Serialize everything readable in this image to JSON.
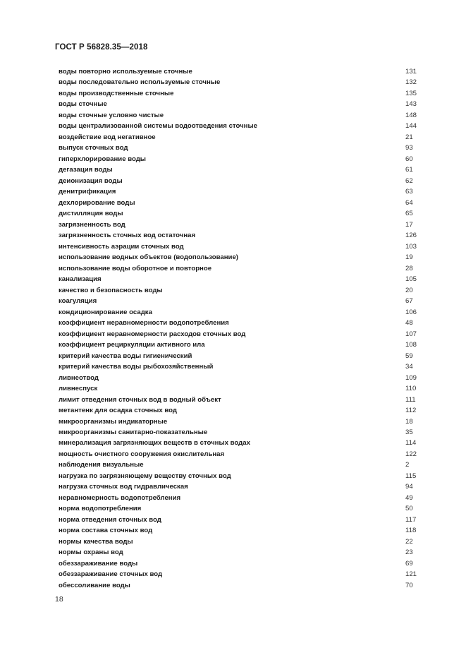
{
  "header": {
    "title": "ГОСТ Р 56828.35—2018"
  },
  "entries": [
    {
      "term": "воды повторно используемые сточные",
      "page": "131"
    },
    {
      "term": "воды последовательно используемые сточные",
      "page": "132"
    },
    {
      "term": "воды производственные сточные",
      "page": "135"
    },
    {
      "term": "воды сточные",
      "page": "143"
    },
    {
      "term": "воды сточные условно чистые",
      "page": "148"
    },
    {
      "term": "воды централизованной системы водоотведения сточные",
      "page": "144"
    },
    {
      "term": "воздействие вод негативное",
      "page": "21"
    },
    {
      "term": "выпуск сточных вод",
      "page": "93"
    },
    {
      "term": "гиперхлорирование воды",
      "page": "60"
    },
    {
      "term": "дегазация воды",
      "page": "61"
    },
    {
      "term": "деионизация воды",
      "page": "62"
    },
    {
      "term": "денитрификация",
      "page": "63"
    },
    {
      "term": "дехлорирование воды",
      "page": "64"
    },
    {
      "term": "дистилляция воды",
      "page": "65"
    },
    {
      "term": "загрязненность вод",
      "page": "17"
    },
    {
      "term": "загрязненность сточных вод остаточная",
      "page": "126"
    },
    {
      "term": "интенсивность аэрации сточных вод",
      "page": "103"
    },
    {
      "term": "использование водных объектов (водопользование)",
      "page": "19"
    },
    {
      "term": "использование воды оборотное и повторное",
      "page": "28"
    },
    {
      "term": "канализация",
      "page": "105"
    },
    {
      "term": "качество и безопасность воды",
      "page": "20"
    },
    {
      "term": "коагуляция",
      "page": "67"
    },
    {
      "term": "кондиционирование осадка",
      "page": "106"
    },
    {
      "term": "коэффициент неравномерности водопотребления",
      "page": "48"
    },
    {
      "term": "коэффициент неравномерности расходов сточных вод",
      "page": "107"
    },
    {
      "term": "коэффициент рециркуляции активного ила",
      "page": "108"
    },
    {
      "term": "критерий качества воды гигиенический",
      "page": "59"
    },
    {
      "term": "критерий качества воды рыбохозяйственный",
      "page": "34"
    },
    {
      "term": "ливнеотвод",
      "page": "109"
    },
    {
      "term": "ливнеспуск",
      "page": "110"
    },
    {
      "term": "лимит отведения сточных вод в водный объект",
      "page": "111"
    },
    {
      "term": "метантенк для осадка сточных вод",
      "page": "112"
    },
    {
      "term": "микроорганизмы индикаторные",
      "page": "18"
    },
    {
      "term": "микроорганизмы санитарно-показательные",
      "page": "35"
    },
    {
      "term": "минерализация загрязняющих веществ в сточных водах",
      "page": "114"
    },
    {
      "term": "мощность очистного сооружения окислительная",
      "page": "122"
    },
    {
      "term": "наблюдения визуальные",
      "page": "2"
    },
    {
      "term": "нагрузка по загрязняющему веществу сточных вод",
      "page": "115"
    },
    {
      "term": "нагрузка сточных вод гидравлическая",
      "page": "94"
    },
    {
      "term": "неравномерность водопотребления",
      "page": "49"
    },
    {
      "term": "норма водопотребления",
      "page": "50"
    },
    {
      "term": "норма отведения сточных вод",
      "page": "117"
    },
    {
      "term": "норма состава сточных вод",
      "page": "118"
    },
    {
      "term": "нормы качества воды",
      "page": "22"
    },
    {
      "term": "нормы охраны вод",
      "page": "23"
    },
    {
      "term": "обеззараживание воды",
      "page": "69"
    },
    {
      "term": "обеззараживание сточных вод",
      "page": "121"
    },
    {
      "term": "обессоливание воды",
      "page": "70"
    }
  ],
  "footer": {
    "page_number": "18"
  }
}
